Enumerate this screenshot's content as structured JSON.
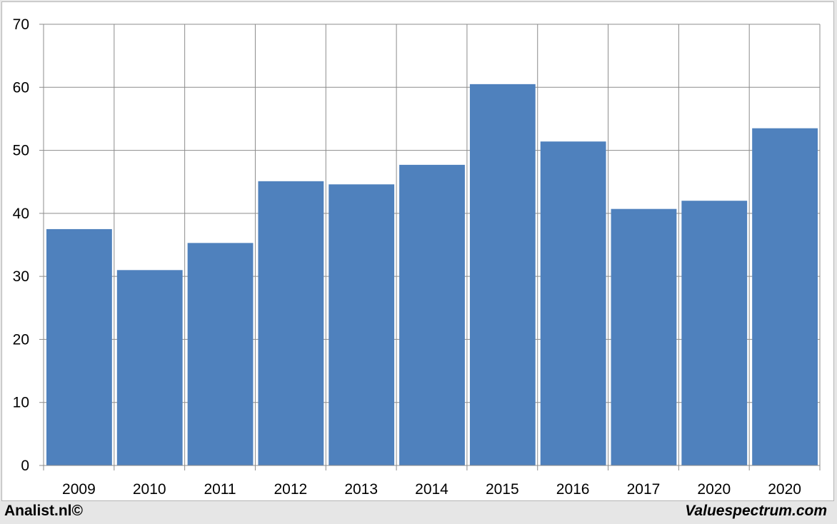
{
  "chart_data": {
    "type": "bar",
    "categories": [
      "2009",
      "2010",
      "2011",
      "2012",
      "2013",
      "2014",
      "2015",
      "2016",
      "2017",
      "2020",
      "2020"
    ],
    "values": [
      37.5,
      31.0,
      35.3,
      45.1,
      44.6,
      47.7,
      60.5,
      51.4,
      40.7,
      42.0,
      53.5
    ],
    "ylim": [
      0,
      70
    ],
    "yticks": [
      0,
      10,
      20,
      30,
      40,
      50,
      60,
      70
    ],
    "grid": true,
    "bar_color": "#4f81bd",
    "title": "",
    "xlabel": "",
    "ylabel": ""
  },
  "footer": {
    "left": "Analist.nl©",
    "right": "Valuespectrum.com"
  }
}
